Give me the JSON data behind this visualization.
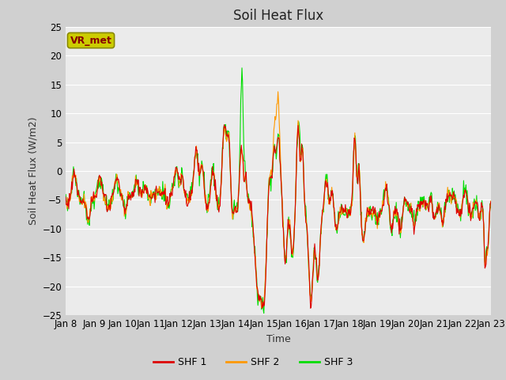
{
  "title": "Soil Heat Flux",
  "xlabel": "Time",
  "ylabel": "Soil Heat Flux (W/m2)",
  "ylim": [
    -25,
    25
  ],
  "yticks": [
    -25,
    -20,
    -15,
    -10,
    -5,
    0,
    5,
    10,
    15,
    20,
    25
  ],
  "xtick_labels": [
    "Jan 8",
    "Jan 9",
    "Jan 10",
    "Jan 11",
    "Jan 12",
    "Jan 13",
    "Jan 14",
    "Jan 15",
    "Jan 16",
    "Jan 17",
    "Jan 18",
    "Jan 19",
    "Jan 20",
    "Jan 21",
    "Jan 22",
    "Jan 23"
  ],
  "line_colors": [
    "#dd0000",
    "#ff9900",
    "#00dd00"
  ],
  "line_labels": [
    "SHF 1",
    "SHF 2",
    "SHF 3"
  ],
  "line_width": 0.8,
  "plot_bg_color": "#ebebeb",
  "fig_bg_color": "#d0d0d0",
  "grid_color": "#ffffff",
  "annotation_text": "VR_met",
  "annotation_box_facecolor": "#cccc00",
  "annotation_box_edgecolor": "#888800",
  "annotation_text_color": "#880000",
  "title_fontsize": 12,
  "axis_label_fontsize": 9,
  "tick_fontsize": 8.5
}
